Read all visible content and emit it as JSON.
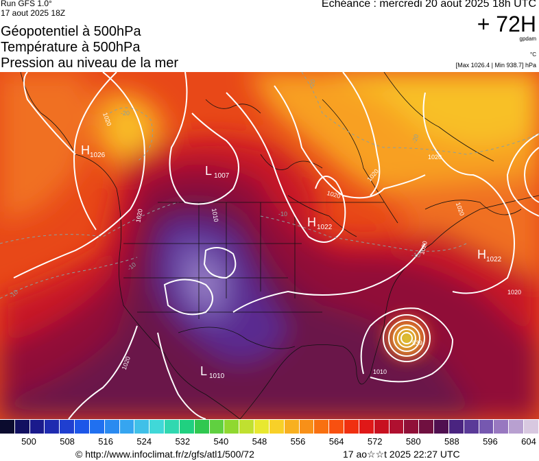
{
  "header": {
    "run": "Run GFS 1.0°",
    "run_date": "17 aout 2025 18Z",
    "title_lines": [
      "Géopotentiel à 500hPa",
      "Température à 500hPa",
      "Pression au niveau de la mer"
    ],
    "echeance": "Echéance : mercredi 20 aout 2025 18h UTC",
    "lead": "+ 72H",
    "unit_geo": "gpdam",
    "unit_temp": "°C",
    "maxmin": "[Max 1026.4 | Min 938.7] hPa"
  },
  "map": {
    "pressure_centers": [
      {
        "type": "H",
        "value": "1026"
      },
      {
        "type": "L",
        "value": "1007"
      },
      {
        "type": "H",
        "value": "1022"
      },
      {
        "type": "H",
        "value": "1022"
      },
      {
        "type": "L",
        "value": "1010"
      }
    ],
    "isobar_labels": [
      "1020",
      "1020",
      "1010",
      "1020",
      "1020",
      "1020",
      "1020",
      "1020",
      "1020",
      "1010",
      "939",
      "1020"
    ],
    "temp_labels": [
      "-20",
      "-20",
      "-20",
      "-10",
      "-10",
      "-10",
      "-10"
    ]
  },
  "colorbar": {
    "colors": [
      "#0b0b2e",
      "#121060",
      "#1a1a8c",
      "#1f2bb0",
      "#1f3fd0",
      "#1d56e8",
      "#2070f0",
      "#2a8af0",
      "#36a5f0",
      "#40c0e8",
      "#40d8d8",
      "#30d8b0",
      "#20d080",
      "#30c850",
      "#60d040",
      "#90d830",
      "#c0e030",
      "#e8e830",
      "#f8d028",
      "#f8b020",
      "#f89018",
      "#f87010",
      "#f85010",
      "#f03010",
      "#e01818",
      "#c81020",
      "#b01030",
      "#901038",
      "#701040",
      "#501050",
      "#4a2480",
      "#5a3a98",
      "#7658b0",
      "#9878c0",
      "#b8a0d0",
      "#d8c8e0"
    ],
    "ticks": [
      "500",
      "508",
      "516",
      "524",
      "532",
      "540",
      "548",
      "556",
      "564",
      "572",
      "580",
      "588",
      "596",
      "604"
    ]
  },
  "footer": {
    "url": "© http://www.infoclimat.fr/z/gfs/atl1/500/72",
    "time": "17 ao☆☆t 2025 22:27 UTC"
  }
}
